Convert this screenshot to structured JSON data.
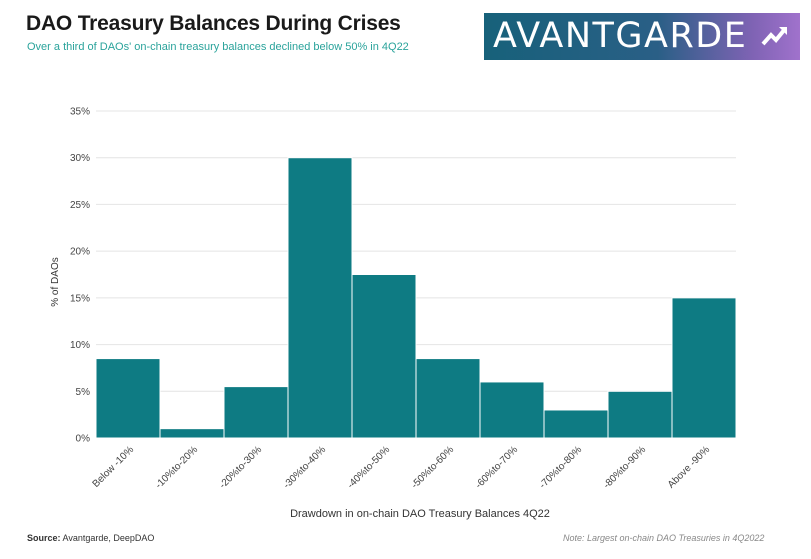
{
  "header": {
    "title": "DAO Treasury Balances During Crises",
    "subtitle": "Over a third of DAOs' on-chain treasury balances declined below 50% in 4Q22"
  },
  "logo": {
    "text": "AVANTGARDE",
    "icon": "arrow-mark-icon"
  },
  "footer": {
    "source_label": "Source:",
    "source_text": "Avantgarde, DeepDAO",
    "note": "Note: Largest on-chain DAO Treasuries in 4Q2022"
  },
  "colors": {
    "bar": "#0e7b83",
    "subtitle": "#2aa39b"
  },
  "chart_data": {
    "type": "bar",
    "categories": [
      "Below -10%",
      "-10%to-20%",
      "-20%to-30%",
      "-30%to-40%",
      "-40%to-50%",
      "-50%to-60%",
      "-60%to-70%",
      "-70%to-80%",
      "-80%to-90%",
      "Above -90%"
    ],
    "values": [
      8.5,
      1,
      5.5,
      30,
      17.5,
      8.5,
      6,
      3,
      5,
      15
    ],
    "xlabel": "Drawdown in on-chain DAO Treasury Balances 4Q22",
    "ylabel": "% of DAOs",
    "ylim": [
      0,
      35
    ],
    "yticks": [
      "0%",
      "5%",
      "10%",
      "15%",
      "20%",
      "25%",
      "30%",
      "35%"
    ],
    "grid": true,
    "legend": "none"
  }
}
